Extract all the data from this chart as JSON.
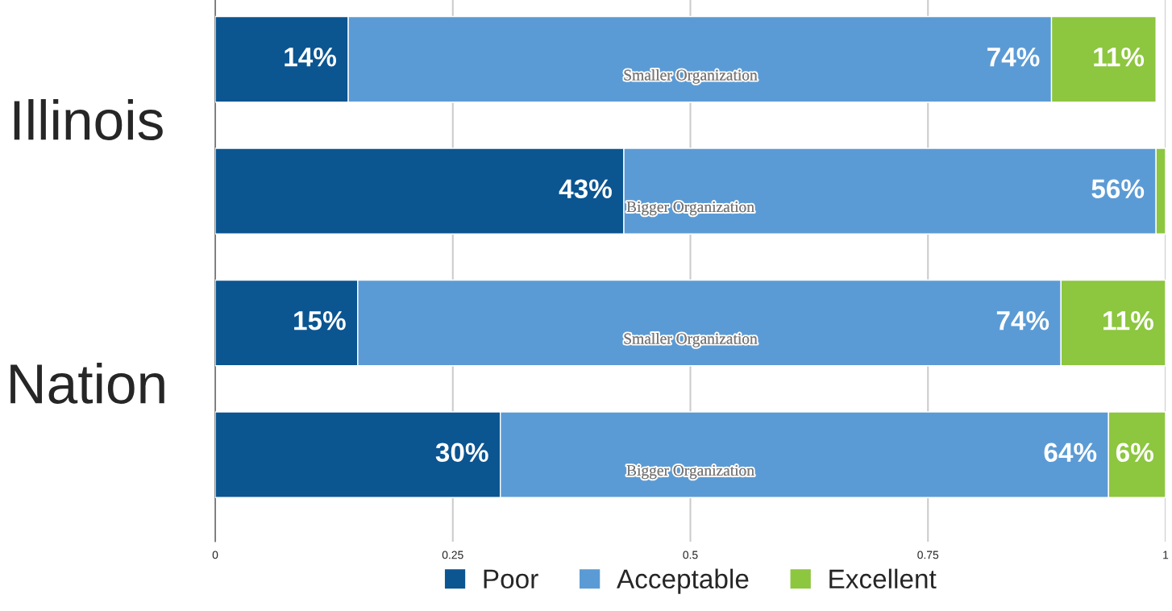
{
  "chart_data": {
    "type": "bar",
    "orientation": "horizontal",
    "stacked": true,
    "categories": [
      "Smaller Organization",
      "Bigger Organization",
      "Smaller Organization",
      "Bigger Organization"
    ],
    "series": [
      {
        "name": "Poor",
        "color": "#0b5591",
        "values": [
          0.14,
          0.43,
          0.15,
          0.3
        ],
        "value_labels": [
          "14%",
          "43%",
          "15%",
          "30%"
        ]
      },
      {
        "name": "Acceptable",
        "color": "#5b9bd5",
        "values": [
          0.74,
          0.56,
          0.74,
          0.64
        ],
        "value_labels": [
          "74%",
          "56%",
          "74%",
          "64%"
        ]
      },
      {
        "name": "Excellent",
        "color": "#8dc63f",
        "values": [
          0.11,
          0.01,
          0.11,
          0.06
        ],
        "value_labels": [
          "11%",
          null,
          "11%",
          "6%"
        ]
      }
    ],
    "xlim": [
      0,
      1
    ],
    "xticks": [
      0,
      0.25,
      0.5,
      0.75,
      1
    ],
    "grid": "x",
    "legend": "bottom",
    "annotations": [
      "Illinois",
      "Nation"
    ]
  }
}
